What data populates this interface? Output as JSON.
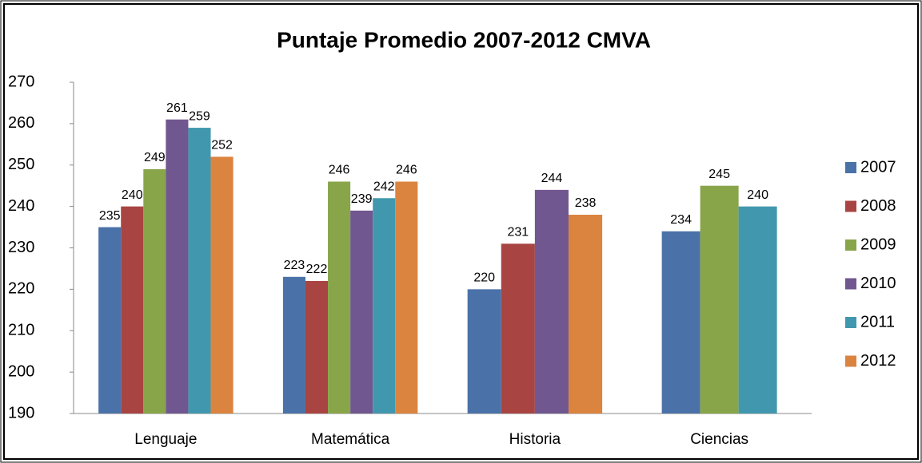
{
  "chart_data": {
    "type": "bar",
    "title": "Puntaje Promedio 2007-2012 CMVA",
    "categories": [
      "Lenguaje",
      "Matemática",
      "Historia",
      "Ciencias"
    ],
    "series": [
      {
        "name": "2007",
        "color": "#4a72a8",
        "values": [
          235,
          223,
          220,
          234
        ]
      },
      {
        "name": "2008",
        "color": "#a84442",
        "values": [
          240,
          222,
          231,
          null
        ]
      },
      {
        "name": "2009",
        "color": "#88a54a",
        "values": [
          249,
          246,
          null,
          245
        ]
      },
      {
        "name": "2010",
        "color": "#71578f",
        "values": [
          261,
          239,
          244,
          null
        ]
      },
      {
        "name": "2011",
        "color": "#4198ae",
        "values": [
          259,
          242,
          null,
          240
        ]
      },
      {
        "name": "2012",
        "color": "#db8440",
        "values": [
          252,
          246,
          238,
          null
        ]
      }
    ],
    "ylim": [
      190,
      270
    ],
    "yticks": [
      190,
      200,
      210,
      220,
      230,
      240,
      250,
      260,
      270
    ],
    "grid": false,
    "legend": "right"
  }
}
